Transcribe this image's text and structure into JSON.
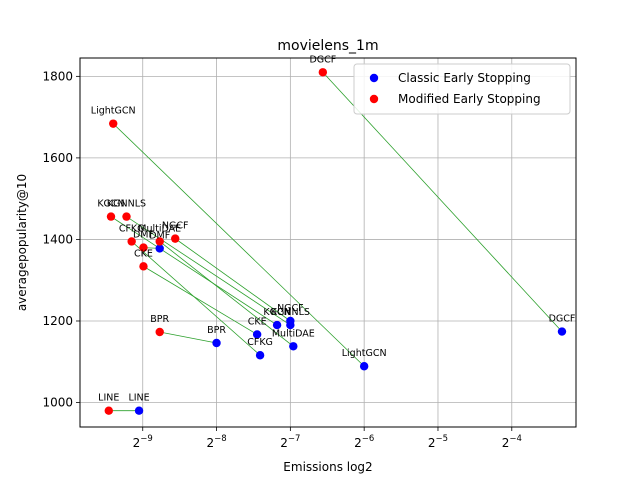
{
  "chart_data": {
    "type": "scatter",
    "title": "movielens_1m",
    "xlabel": "Emissions log2",
    "ylabel": "averagepopularity@10",
    "x_scale": "log2",
    "xlim_log2": [
      -9.85,
      -3.13
    ],
    "ylim": [
      940,
      1845
    ],
    "x_ticks": [
      {
        "exp": -9,
        "label": "2^-9"
      },
      {
        "exp": -8,
        "label": "2^-8"
      },
      {
        "exp": -7,
        "label": "2^-7"
      },
      {
        "exp": -6,
        "label": "2^-6"
      },
      {
        "exp": -5,
        "label": "2^-5"
      },
      {
        "exp": -4,
        "label": "2^-4"
      }
    ],
    "y_ticks": [
      1000,
      1200,
      1400,
      1600,
      1800
    ],
    "grid": true,
    "legend_position": "top-right",
    "series": [
      {
        "name": "Classic Early Stopping",
        "color": "#0000ff",
        "points": [
          {
            "label": "LINE",
            "log2x": -9.05,
            "y": 980
          },
          {
            "label": "BPR",
            "log2x": -8.0,
            "y": 1146
          },
          {
            "label": "CFKG",
            "log2x": -7.41,
            "y": 1116
          },
          {
            "label": "CKE",
            "log2x": -7.45,
            "y": 1167
          },
          {
            "label": "KGCN",
            "log2x": -7.18,
            "y": 1190
          },
          {
            "label": "NGCF",
            "log2x": -7.0,
            "y": 1200
          },
          {
            "label": "KGNNLS",
            "log2x": -7.0,
            "y": 1190
          },
          {
            "label": "MultiDAE",
            "log2x": -6.96,
            "y": 1138
          },
          {
            "label": "LightGCN",
            "log2x": -6.0,
            "y": 1089
          },
          {
            "label": "DGCF",
            "log2x": -3.32,
            "y": 1174
          },
          {
            "label": "DMF",
            "log2x": -8.77,
            "y": 1378
          }
        ]
      },
      {
        "name": "Modified Early Stopping",
        "color": "#ff0000",
        "points": [
          {
            "label": "LINE",
            "log2x": -9.46,
            "y": 980
          },
          {
            "label": "BPR",
            "log2x": -8.77,
            "y": 1173
          },
          {
            "label": "CKE",
            "log2x": -8.99,
            "y": 1334
          },
          {
            "label": "CFKG",
            "log2x": -9.15,
            "y": 1395
          },
          {
            "label": "DMF",
            "log2x": -8.99,
            "y": 1380
          },
          {
            "label": "MultiDAE",
            "log2x": -8.77,
            "y": 1395
          },
          {
            "label": "NGCF",
            "log2x": -8.56,
            "y": 1402
          },
          {
            "label": "KGCN",
            "log2x": -9.43,
            "y": 1456
          },
          {
            "label": "KGNNLS",
            "log2x": -9.22,
            "y": 1456
          },
          {
            "label": "LightGCN",
            "log2x": -9.4,
            "y": 1684
          },
          {
            "label": "DGCF",
            "log2x": -6.56,
            "y": 1810
          }
        ]
      }
    ],
    "connections_color": "#2ca02c",
    "connections": [
      {
        "model": "LINE"
      },
      {
        "model": "BPR"
      },
      {
        "model": "CKE"
      },
      {
        "model": "CFKG"
      },
      {
        "model": "DMF"
      },
      {
        "model": "MultiDAE"
      },
      {
        "model": "NGCF"
      },
      {
        "model": "KGCN"
      },
      {
        "model": "KGNNLS"
      },
      {
        "model": "LightGCN"
      },
      {
        "model": "DGCF"
      }
    ]
  }
}
